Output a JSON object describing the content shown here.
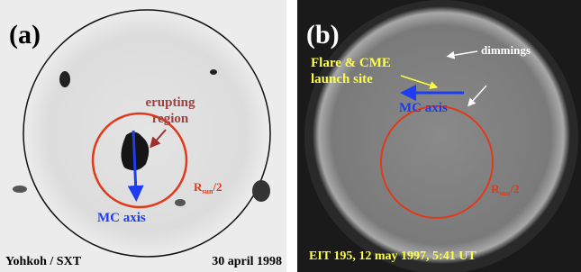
{
  "panel_a": {
    "label": "(a)",
    "region_label": [
      "erupting",
      "region"
    ],
    "axis_label": "MC axis",
    "radius_label": {
      "base": "R",
      "sub": "sun",
      "tail": "/2"
    },
    "instrument": "Yohkoh / SXT",
    "date": "30 april 1998"
  },
  "panel_b": {
    "label": "(b)",
    "site_label": [
      "Flare & CME",
      "launch site"
    ],
    "dimmings_label": "dimmings",
    "axis_label": "MC axis",
    "radius_label": {
      "base": "R",
      "sub": "sun",
      "tail": "/2"
    },
    "caption": "EIT 195, 12 may 1997, 5:41 UT"
  }
}
